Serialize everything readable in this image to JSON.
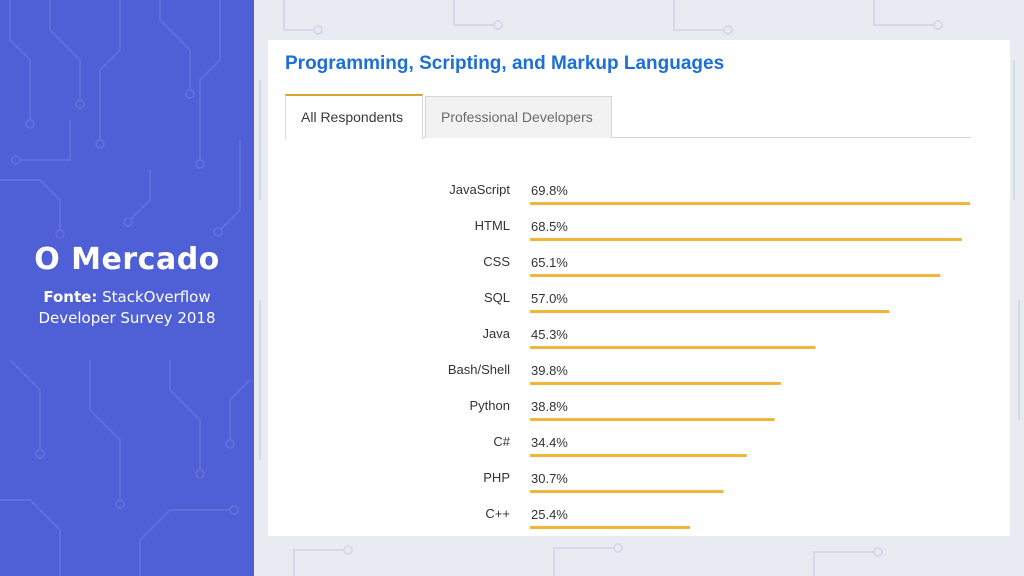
{
  "slide": {
    "title": "O Mercado",
    "source_label": "Fonte:",
    "source_text": "StackOverflow",
    "source_text_line2": "Developer Survey 2018"
  },
  "colors": {
    "left_panel": "#4f5fd6",
    "title_blue": "#1c6ed8",
    "bar": "#f0b63a",
    "tab_accent": "#d8a332"
  },
  "card": {
    "title": "Programming, Scripting, and Markup Languages",
    "tabs": [
      {
        "label": "All Respondents",
        "active": true
      },
      {
        "label": "Professional Developers",
        "active": false
      }
    ]
  },
  "chart_data": {
    "type": "bar",
    "orientation": "horizontal",
    "title": "Programming, Scripting, and Markup Languages",
    "categories": [
      "JavaScript",
      "HTML",
      "CSS",
      "SQL",
      "Java",
      "Bash/Shell",
      "Python",
      "C#",
      "PHP",
      "C++"
    ],
    "values": [
      69.8,
      68.5,
      65.1,
      57.0,
      45.3,
      39.8,
      38.8,
      34.4,
      30.7,
      25.4
    ],
    "value_labels": [
      "69.8%",
      "68.5%",
      "65.1%",
      "57.0%",
      "45.3%",
      "39.8%",
      "38.8%",
      "34.4%",
      "30.7%",
      "25.4%"
    ],
    "xlim": [
      0,
      69.8
    ],
    "grid": false
  }
}
